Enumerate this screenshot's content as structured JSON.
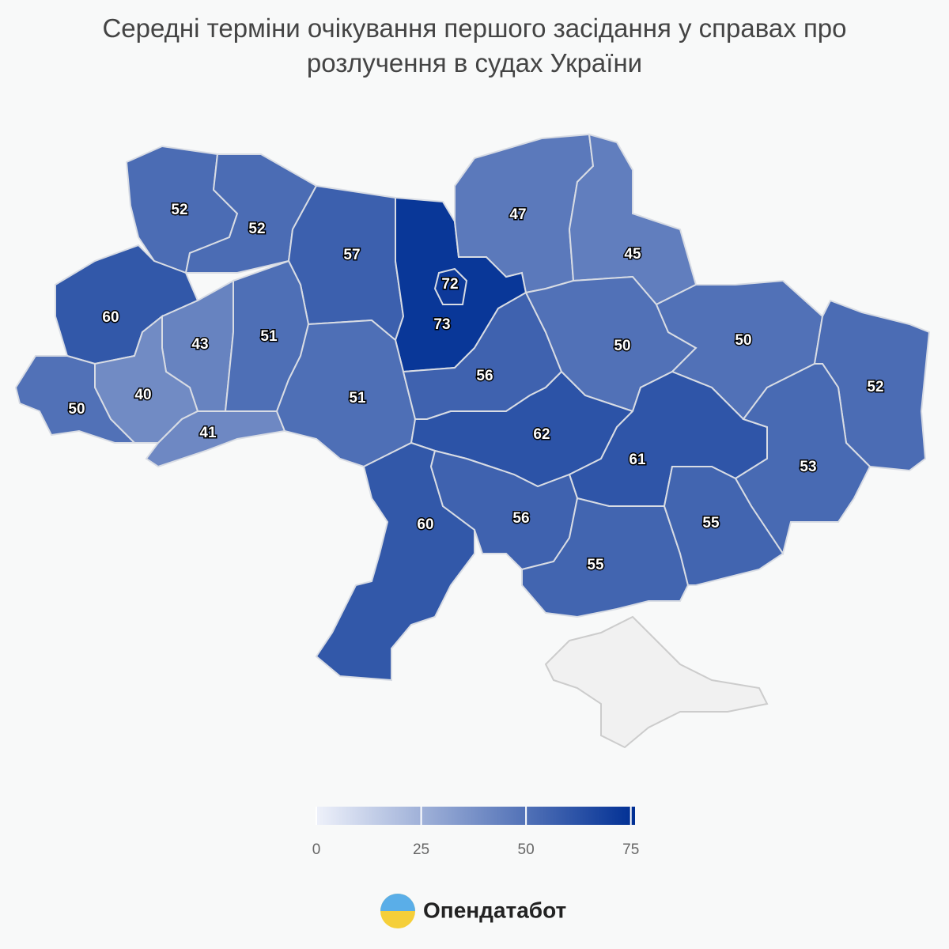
{
  "title": "Середні терміни очікування першого засідання у справах про розлучення в судах України",
  "map": {
    "values": [
      52,
      52,
      57,
      72,
      73,
      47,
      45,
      60,
      43,
      51,
      40,
      50,
      41,
      51,
      56,
      50,
      50,
      52,
      62,
      61,
      53,
      60,
      56,
      55,
      55
    ],
    "colors": [
      "#eef1fa",
      "#002f94"
    ],
    "scale": {
      "lim": [
        0,
        76
      ],
      "ticks": [
        0,
        25,
        50,
        75
      ]
    }
  },
  "logo": "Опендатабот"
}
